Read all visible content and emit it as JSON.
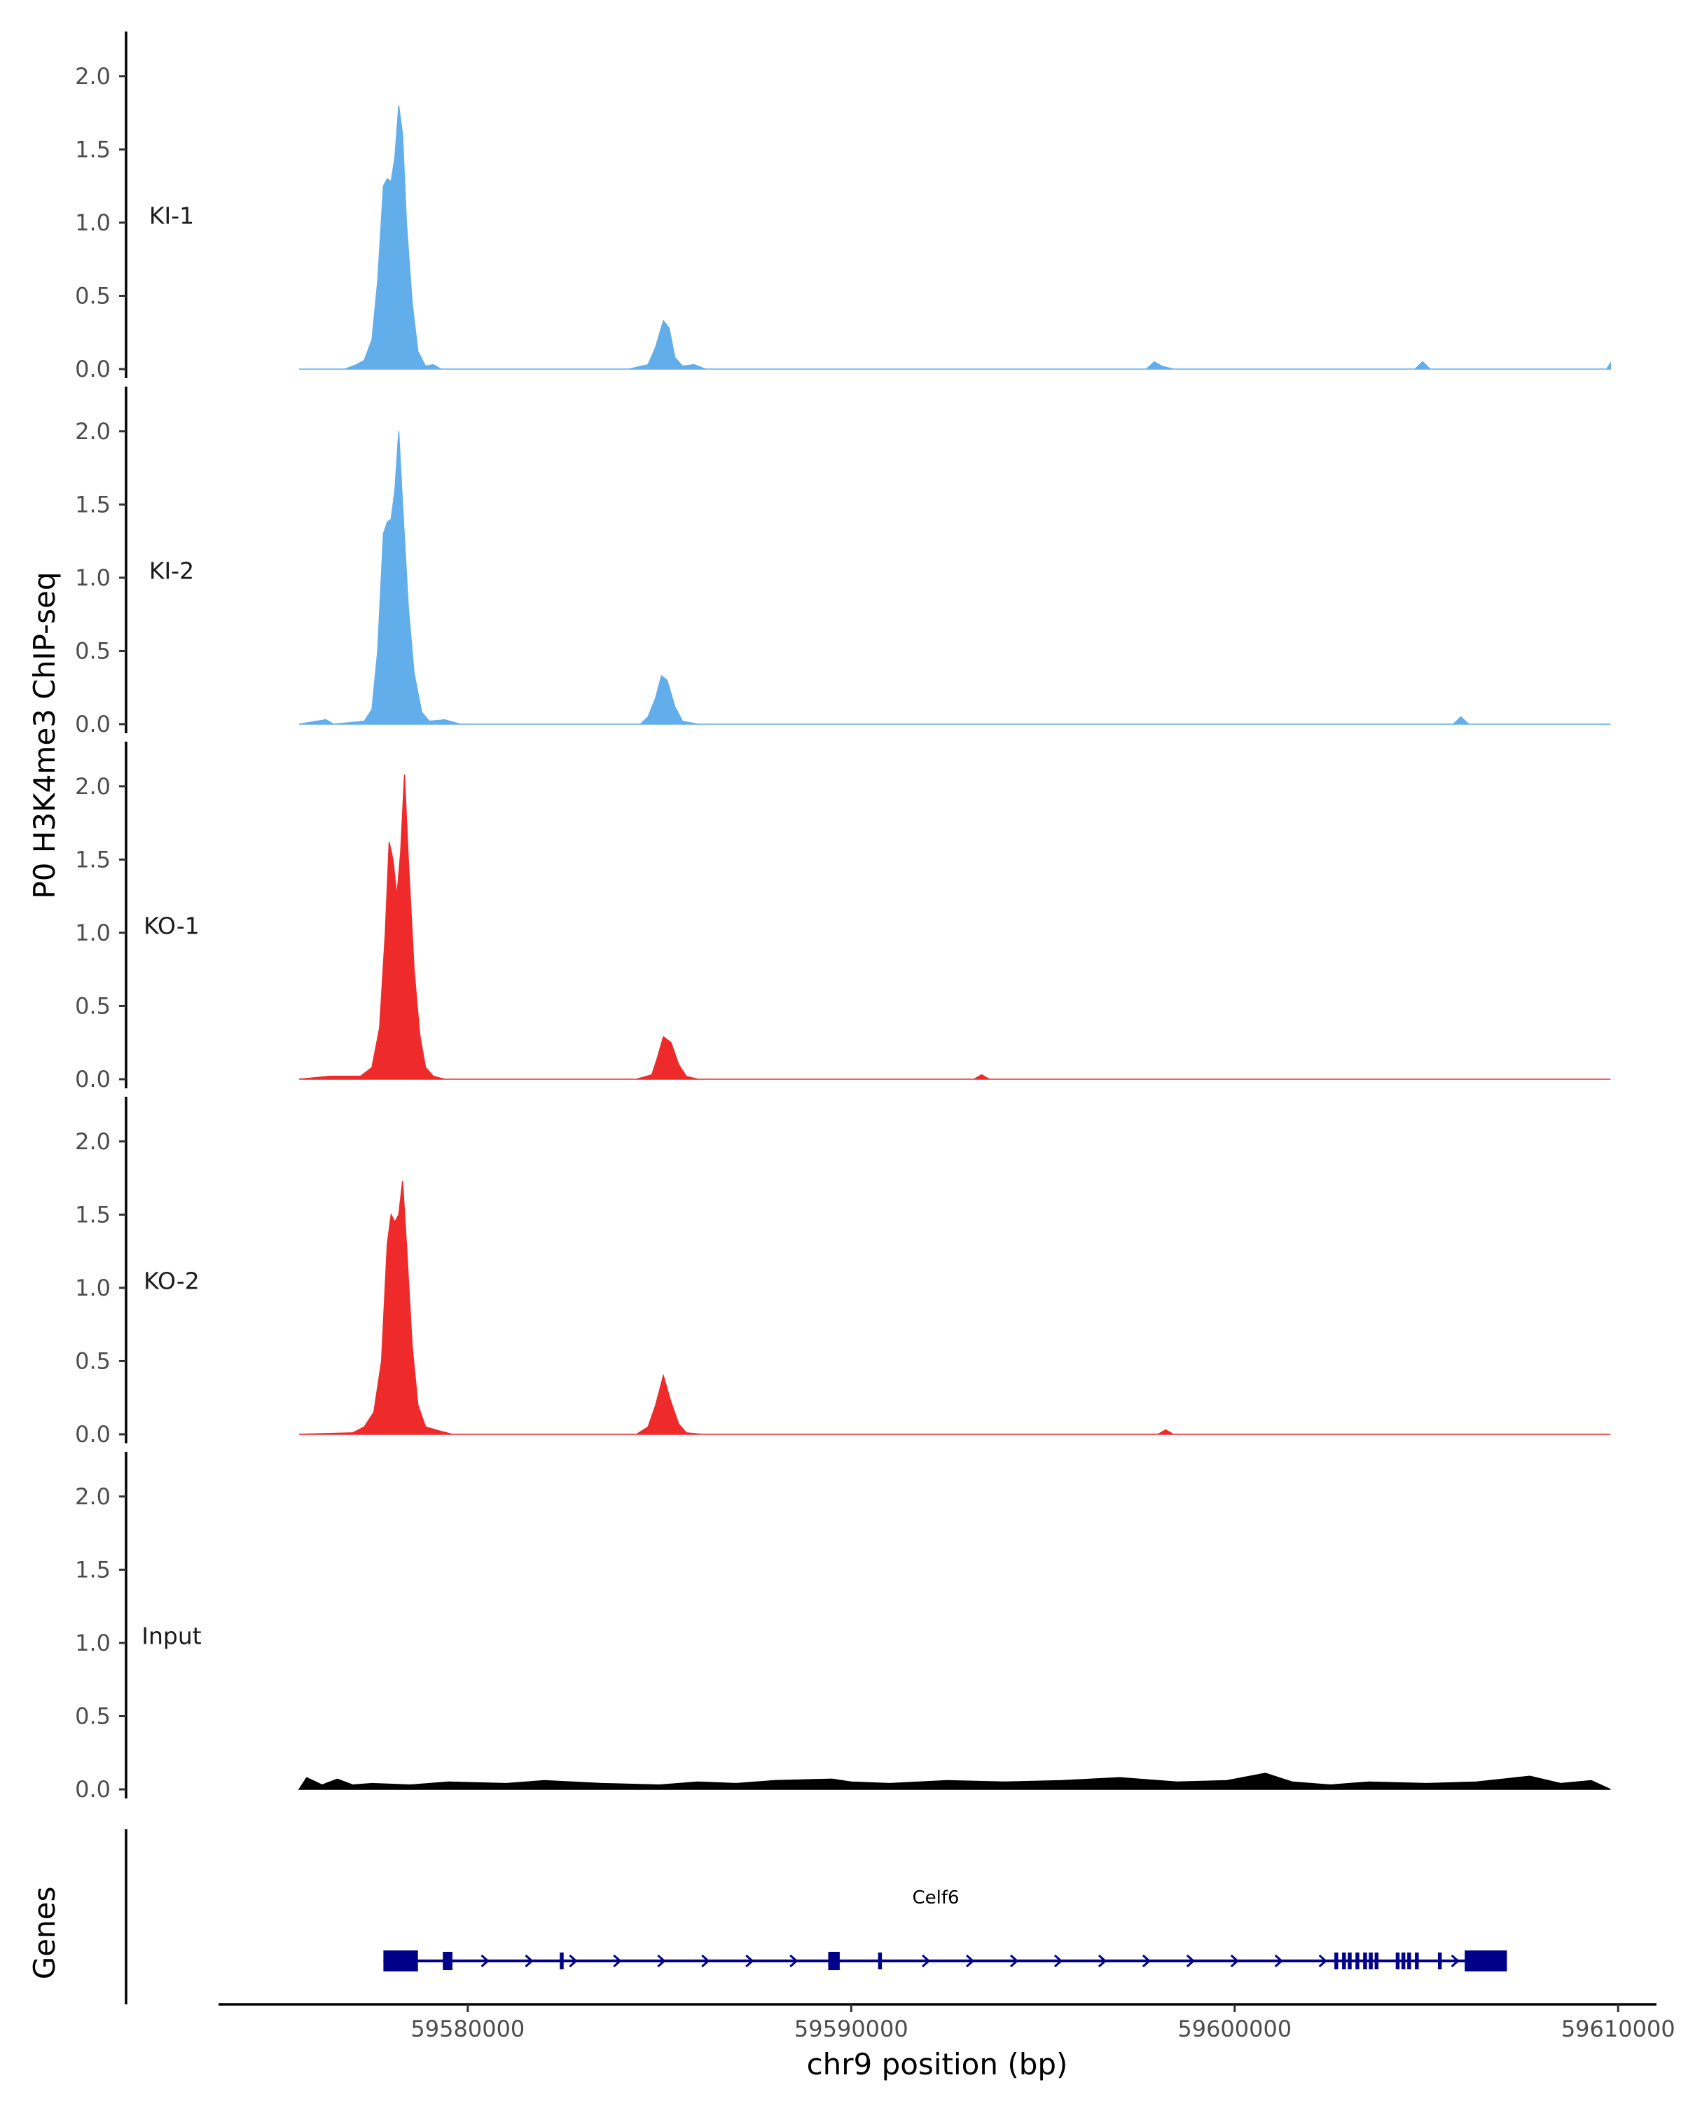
{
  "chart_data": {
    "type": "area",
    "ylabel": "P0 H3K4me3 ChIP-seq",
    "xlabel": "chr9 position (bp)",
    "xlim": [
      59573500,
      59611000
    ],
    "ylim": [
      0,
      2.2
    ],
    "y_ticks": [
      "0.0",
      "0.5",
      "1.0",
      "1.5",
      "2.0"
    ],
    "y_tick_values": [
      0,
      0.5,
      1.0,
      1.5,
      2.0
    ],
    "x_ticks": [
      "59580000",
      "59590000",
      "59600000",
      "59610000"
    ],
    "x_tick_values": [
      59580000,
      59590000,
      59600000,
      59610000
    ],
    "tracks": [
      {
        "name": "KI-1",
        "color": "#62aeea",
        "points": [
          [
            59575600,
            0
          ],
          [
            59576800,
            0
          ],
          [
            59577100,
            0.03
          ],
          [
            59577300,
            0.06
          ],
          [
            59577500,
            0.2
          ],
          [
            59577650,
            0.6
          ],
          [
            59577800,
            1.25
          ],
          [
            59577900,
            1.3
          ],
          [
            59578000,
            1.28
          ],
          [
            59578100,
            1.45
          ],
          [
            59578200,
            1.8
          ],
          [
            59578300,
            1.6
          ],
          [
            59578400,
            1.0
          ],
          [
            59578550,
            0.45
          ],
          [
            59578700,
            0.12
          ],
          [
            59578900,
            0.02
          ],
          [
            59579100,
            0.03
          ],
          [
            59579300,
            0
          ],
          [
            59584200,
            0
          ],
          [
            59584700,
            0.03
          ],
          [
            59584900,
            0.15
          ],
          [
            59585100,
            0.33
          ],
          [
            59585250,
            0.28
          ],
          [
            59585400,
            0.08
          ],
          [
            59585600,
            0.02
          ],
          [
            59585900,
            0.03
          ],
          [
            59586200,
            0
          ],
          [
            59597700,
            0
          ],
          [
            59597900,
            0.05
          ],
          [
            59598100,
            0.02
          ],
          [
            59598400,
            0
          ],
          [
            59604700,
            0
          ],
          [
            59604900,
            0.05
          ],
          [
            59605100,
            0
          ],
          [
            59609700,
            0
          ],
          [
            59609800,
            0.04
          ],
          [
            59609800,
            0
          ]
        ]
      },
      {
        "name": "KI-2",
        "color": "#62aeea",
        "points": [
          [
            59575600,
            0
          ],
          [
            59576300,
            0.03
          ],
          [
            59576500,
            0
          ],
          [
            59577300,
            0.02
          ],
          [
            59577500,
            0.1
          ],
          [
            59577650,
            0.5
          ],
          [
            59577800,
            1.3
          ],
          [
            59577900,
            1.38
          ],
          [
            59578000,
            1.4
          ],
          [
            59578100,
            1.6
          ],
          [
            59578200,
            2.0
          ],
          [
            59578300,
            1.5
          ],
          [
            59578450,
            0.8
          ],
          [
            59578600,
            0.35
          ],
          [
            59578800,
            0.08
          ],
          [
            59579000,
            0.02
          ],
          [
            59579400,
            0.03
          ],
          [
            59579800,
            0
          ],
          [
            59584500,
            0
          ],
          [
            59584700,
            0.05
          ],
          [
            59584900,
            0.18
          ],
          [
            59585050,
            0.33
          ],
          [
            59585200,
            0.3
          ],
          [
            59585400,
            0.12
          ],
          [
            59585600,
            0.02
          ],
          [
            59586000,
            0
          ],
          [
            59605700,
            0
          ],
          [
            59605900,
            0.05
          ],
          [
            59606100,
            0
          ],
          [
            59609800,
            0
          ]
        ]
      },
      {
        "name": "KO-1",
        "color": "#ee2a2a",
        "points": [
          [
            59575600,
            0
          ],
          [
            59576400,
            0.02
          ],
          [
            59577200,
            0.02
          ],
          [
            59577500,
            0.08
          ],
          [
            59577700,
            0.35
          ],
          [
            59577850,
            1.0
          ],
          [
            59577950,
            1.62
          ],
          [
            59578050,
            1.5
          ],
          [
            59578150,
            1.25
          ],
          [
            59578250,
            1.55
          ],
          [
            59578350,
            2.08
          ],
          [
            59578450,
            1.5
          ],
          [
            59578600,
            0.75
          ],
          [
            59578750,
            0.3
          ],
          [
            59578900,
            0.08
          ],
          [
            59579100,
            0.02
          ],
          [
            59579400,
            0
          ],
          [
            59584400,
            0
          ],
          [
            59584800,
            0.03
          ],
          [
            59584950,
            0.15
          ],
          [
            59585100,
            0.29
          ],
          [
            59585300,
            0.25
          ],
          [
            59585500,
            0.1
          ],
          [
            59585700,
            0.02
          ],
          [
            59586000,
            0
          ],
          [
            59593200,
            0
          ],
          [
            59593400,
            0.03
          ],
          [
            59593600,
            0
          ],
          [
            59609800,
            0
          ]
        ]
      },
      {
        "name": "KO-2",
        "color": "#ee2a2a",
        "points": [
          [
            59575600,
            0
          ],
          [
            59577000,
            0.01
          ],
          [
            59577300,
            0.05
          ],
          [
            59577550,
            0.15
          ],
          [
            59577750,
            0.5
          ],
          [
            59577900,
            1.3
          ],
          [
            59578000,
            1.5
          ],
          [
            59578100,
            1.45
          ],
          [
            59578200,
            1.5
          ],
          [
            59578300,
            1.73
          ],
          [
            59578400,
            1.3
          ],
          [
            59578550,
            0.6
          ],
          [
            59578700,
            0.2
          ],
          [
            59578900,
            0.05
          ],
          [
            59579300,
            0.02
          ],
          [
            59579600,
            0
          ],
          [
            59584400,
            0
          ],
          [
            59584700,
            0.05
          ],
          [
            59584900,
            0.2
          ],
          [
            59585100,
            0.4
          ],
          [
            59585300,
            0.22
          ],
          [
            59585500,
            0.07
          ],
          [
            59585700,
            0.01
          ],
          [
            59586100,
            0
          ],
          [
            59598000,
            0
          ],
          [
            59598200,
            0.03
          ],
          [
            59598400,
            0
          ],
          [
            59609800,
            0
          ]
        ]
      },
      {
        "name": "Input",
        "color": "#000000",
        "points": [
          [
            59575600,
            0
          ],
          [
            59575800,
            0.08
          ],
          [
            59576200,
            0.03
          ],
          [
            59576600,
            0.07
          ],
          [
            59577000,
            0.03
          ],
          [
            59577500,
            0.04
          ],
          [
            59578500,
            0.03
          ],
          [
            59579500,
            0.05
          ],
          [
            59581000,
            0.04
          ],
          [
            59582000,
            0.06
          ],
          [
            59583500,
            0.04
          ],
          [
            59585000,
            0.03
          ],
          [
            59586000,
            0.05
          ],
          [
            59587000,
            0.04
          ],
          [
            59588000,
            0.06
          ],
          [
            59589500,
            0.07
          ],
          [
            59590000,
            0.05
          ],
          [
            59591000,
            0.04
          ],
          [
            59592500,
            0.06
          ],
          [
            59594000,
            0.05
          ],
          [
            59595500,
            0.06
          ],
          [
            59597000,
            0.08
          ],
          [
            59598500,
            0.05
          ],
          [
            59599800,
            0.06
          ],
          [
            59600800,
            0.11
          ],
          [
            59601500,
            0.05
          ],
          [
            59602500,
            0.03
          ],
          [
            59603500,
            0.05
          ],
          [
            59605000,
            0.04
          ],
          [
            59606300,
            0.05
          ],
          [
            59607700,
            0.09
          ],
          [
            59608500,
            0.04
          ],
          [
            59609300,
            0.06
          ],
          [
            59609800,
            0
          ]
        ]
      }
    ],
    "genes_track_label": "Genes",
    "gene": {
      "name": "Celf6",
      "color": "#000088",
      "start": 59577800,
      "end": 59607100,
      "strand": "+",
      "exons": [
        [
          59577800,
          59578700
        ],
        [
          59579350,
          59579600
        ],
        [
          59582400,
          59582500
        ],
        [
          59589400,
          59589700
        ],
        [
          59590700,
          59590800
        ],
        [
          59602600,
          59602700
        ],
        [
          59602800,
          59602900
        ],
        [
          59602950,
          59603050
        ],
        [
          59603150,
          59603250
        ],
        [
          59603350,
          59603450
        ],
        [
          59603500,
          59603600
        ],
        [
          59603650,
          59603750
        ],
        [
          59604200,
          59604300
        ],
        [
          59604350,
          59604450
        ],
        [
          59604500,
          59604600
        ],
        [
          59604700,
          59604800
        ],
        [
          59605300,
          59605400
        ],
        [
          59606000,
          59607100
        ]
      ]
    }
  }
}
